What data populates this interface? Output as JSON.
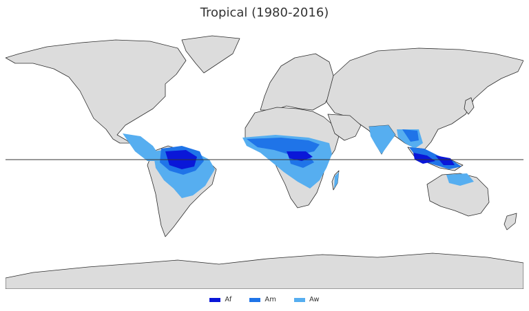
{
  "title": "Tropical (1980-2016)",
  "colors": {
    "land": "#dcdcdc",
    "border": "#2b2b2b",
    "ocean": "#ffffff",
    "equator": "#333333"
  },
  "legend": [
    {
      "label": "Af",
      "color": "#0a17d8"
    },
    {
      "label": "Am",
      "color": "#1f74e8"
    },
    {
      "label": "Aw",
      "color": "#56aef0"
    }
  ]
}
